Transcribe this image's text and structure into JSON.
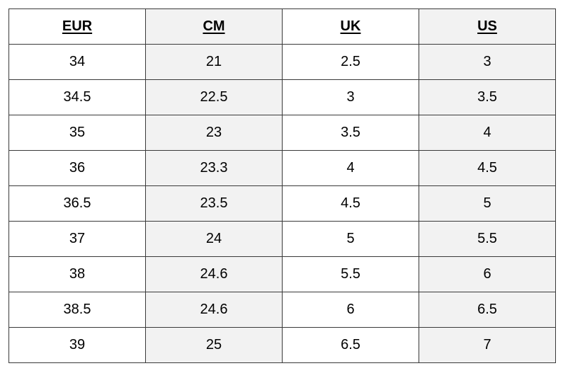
{
  "table": {
    "headers": [
      "EUR",
      "CM",
      "UK",
      "US"
    ],
    "rows": [
      [
        "34",
        "21",
        "2.5",
        "3"
      ],
      [
        "34.5",
        "22.5",
        "3",
        "3.5"
      ],
      [
        "35",
        "23",
        "3.5",
        "4"
      ],
      [
        "36",
        "23.3",
        "4",
        "4.5"
      ],
      [
        "36.5",
        "23.5",
        "4.5",
        "5"
      ],
      [
        "37",
        "24",
        "5",
        "5.5"
      ],
      [
        "38",
        "24.6",
        "5.5",
        "6"
      ],
      [
        "38.5",
        "24.6",
        "6",
        "6.5"
      ],
      [
        "39",
        "25",
        "6.5",
        "7"
      ]
    ],
    "colors": {
      "border": "#3a3a3a",
      "shaded_column_background": "#f2f2f2",
      "plain_column_background": "#ffffff"
    }
  }
}
